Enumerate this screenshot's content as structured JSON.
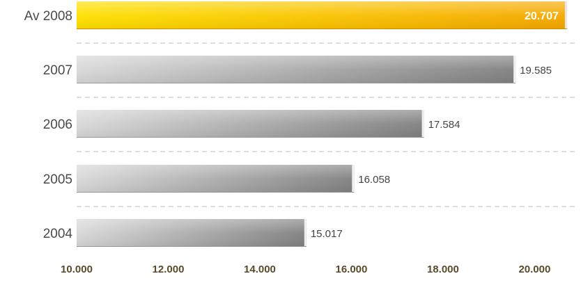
{
  "chart_data": {
    "type": "bar",
    "orientation": "horizontal",
    "categories": [
      "Av 2008",
      "2007",
      "2006",
      "2005",
      "2004"
    ],
    "values": [
      20707,
      19585,
      17584,
      16058,
      15017
    ],
    "value_labels": [
      "20.707",
      "19.585",
      "17.584",
      "16.058",
      "15.017"
    ],
    "highlight_index": 0,
    "xlim": [
      10000,
      20800
    ],
    "xticks": [
      10000,
      12000,
      14000,
      16000,
      18000,
      20000
    ],
    "xtick_labels": [
      "10.000",
      "12.000",
      "14.000",
      "16.000",
      "18.000",
      "20.000"
    ],
    "grid": "dashed separators between bars",
    "legend": "none",
    "colors": {
      "highlight_start": "#FFE000",
      "highlight_end": "#F5A800",
      "bar_start": "#D8D8D8",
      "bar_end": "#808080",
      "tick_text": "#5a4a2a"
    }
  }
}
